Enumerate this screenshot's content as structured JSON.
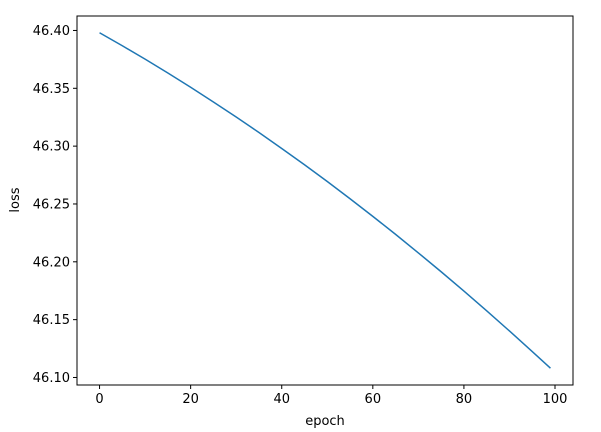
{
  "chart_data": {
    "type": "line",
    "title": "",
    "xlabel": "epoch",
    "ylabel": "loss",
    "xlim": [
      -4.95,
      103.95
    ],
    "ylim": [
      46.0935,
      46.4125
    ],
    "xticks": [
      0,
      20,
      40,
      60,
      80,
      100
    ],
    "xtick_labels": [
      "0",
      "20",
      "40",
      "60",
      "80",
      "100"
    ],
    "yticks": [
      46.1,
      46.15,
      46.2,
      46.25,
      46.3,
      46.35,
      46.4
    ],
    "ytick_labels": [
      "46.10",
      "46.15",
      "46.20",
      "46.25",
      "46.30",
      "46.35",
      "46.40"
    ],
    "grid": false,
    "series": [
      {
        "color": "#1f77b4",
        "x": [
          0,
          5,
          10,
          15,
          20,
          25,
          30,
          35,
          40,
          45,
          50,
          55,
          60,
          65,
          70,
          75,
          80,
          85,
          90,
          95,
          99
        ],
        "y": [
          46.398,
          46.3868,
          46.3752,
          46.3632,
          46.3509,
          46.3382,
          46.3252,
          46.3118,
          46.298,
          46.2839,
          46.2694,
          46.2545,
          46.2393,
          46.2237,
          46.2077,
          46.1914,
          46.1747,
          46.1576,
          46.1402,
          46.1224,
          46.108
        ]
      }
    ]
  }
}
